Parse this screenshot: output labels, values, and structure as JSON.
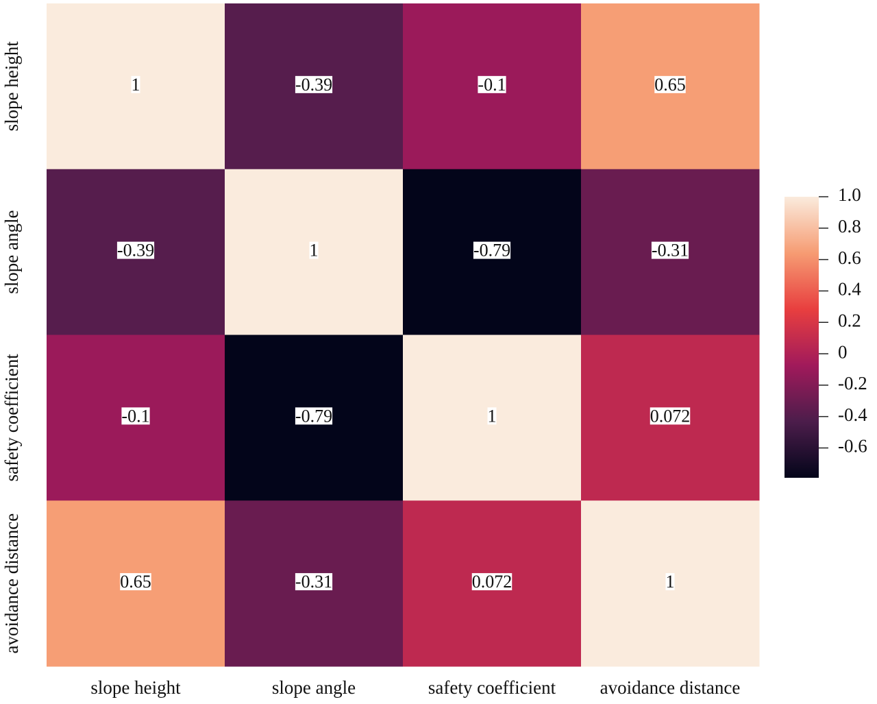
{
  "chart_data": {
    "type": "heatmap",
    "x_categories": [
      "slope height",
      "slope angle",
      "safety coefficient",
      "avoidance distance"
    ],
    "y_categories": [
      "slope height",
      "slope angle",
      "safety coefficient",
      "avoidance distance"
    ],
    "values": [
      [
        1,
        -0.39,
        -0.1,
        0.65
      ],
      [
        -0.39,
        1,
        -0.79,
        -0.31
      ],
      [
        -0.1,
        -0.79,
        1,
        0.072
      ],
      [
        0.65,
        -0.31,
        0.072,
        1
      ]
    ],
    "clim": [
      -0.79,
      1
    ],
    "cticks": [
      {
        "value": 1,
        "label": "1.0"
      },
      0.8,
      0.6,
      0.4,
      0.2,
      0,
      -0.2,
      -0.4,
      -0.6
    ],
    "colors": [
      "#03051a",
      "#4c1d4b",
      "#a11a5b",
      "#e83f3f",
      "#f69c73",
      "#faebdd"
    ]
  }
}
